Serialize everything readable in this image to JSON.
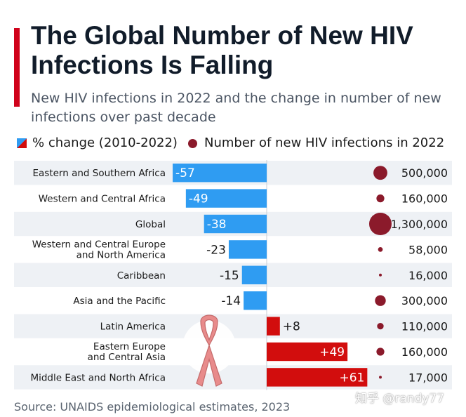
{
  "title": "The Global Number of New HIV Infections Is Falling",
  "subtitle": "New HIV infections in 2022 and the change in number of new infections over past decade",
  "legend": {
    "pct_label": "% change (2010-2022)",
    "dot_label": "Number of new HIV infections in 2022"
  },
  "source": "Source: UNAIDS epidemiological estimates, 2023",
  "watermark": "知乎 @randy77",
  "colors": {
    "accent": "#d0021b",
    "negative_bar": "#2f9cf2",
    "positive_bar": "#d20d0d",
    "dot": "#8b1a2b",
    "row_alt": "#eef1f5",
    "ribbon": "#e88b8b"
  },
  "chart_data": {
    "type": "bar",
    "title": "The Global Number of New HIV Infections Is Falling",
    "categories": [
      "Eastern and Southern Africa",
      "Western and Central Africa",
      "Global",
      "Western and Central Europe and North America",
      "Caribbean",
      "Asia and the Pacific",
      "Latin America",
      "Eastern Europe and Central Asia",
      "Middle East and North Africa"
    ],
    "series": [
      {
        "name": "% change (2010-2022)",
        "values": [
          -57,
          -49,
          -38,
          -23,
          -15,
          -14,
          8,
          49,
          61
        ],
        "labels": [
          "-57",
          "-49",
          "-38",
          "-23",
          "-15",
          "-14",
          "+8",
          "+49",
          "+61"
        ]
      },
      {
        "name": "Number of new HIV infections in 2022",
        "values": [
          500000,
          160000,
          1300000,
          58000,
          16000,
          300000,
          110000,
          160000,
          17000
        ],
        "labels": [
          "500,000",
          "160,000",
          "1,300,000",
          "58,000",
          "16,000",
          "300,000",
          "110,000",
          "160,000",
          "17,000"
        ]
      }
    ],
    "xlim": [
      -100,
      100
    ],
    "legend_position": "top"
  }
}
